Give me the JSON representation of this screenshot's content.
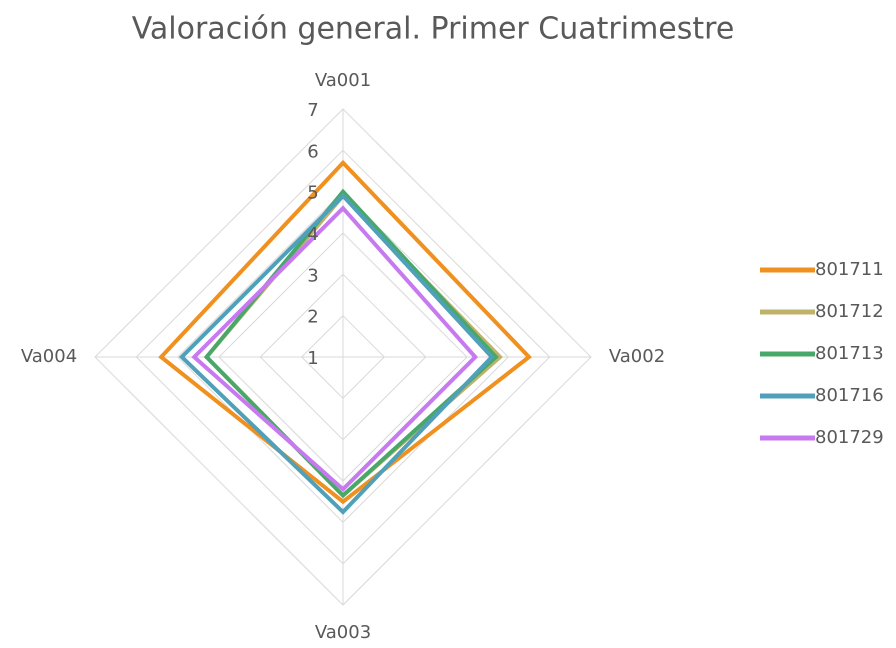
{
  "chart_data": {
    "type": "radar",
    "title": "Valoración general. Primer Cuatrimestre",
    "categories": [
      "Va001",
      "Va002",
      "Va003",
      "Va004"
    ],
    "ylim": [
      1,
      7
    ],
    "yticks": [
      1,
      2,
      3,
      4,
      5,
      6,
      7
    ],
    "grid": true,
    "legend": "right",
    "series": [
      {
        "name": "801711",
        "color": "#f0901e",
        "values": [
          5.7,
          5.5,
          4.5,
          5.4
        ]
      },
      {
        "name": "801712",
        "color": "#bfb26a",
        "values": [
          4.9,
          4.8,
          4.35,
          4.3
        ]
      },
      {
        "name": "801713",
        "color": "#48a86a",
        "values": [
          5.0,
          4.7,
          4.35,
          4.3
        ]
      },
      {
        "name": "801716",
        "color": "#4fa0b8",
        "values": [
          4.9,
          4.6,
          4.75,
          4.9
        ]
      },
      {
        "name": "801729",
        "color": "#c77af0",
        "values": [
          4.6,
          4.2,
          4.2,
          4.6
        ]
      }
    ]
  }
}
